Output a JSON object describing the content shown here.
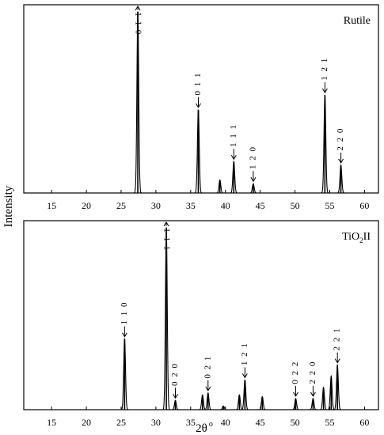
{
  "figure": {
    "ylabel": "Intensity",
    "xlabel_main": "2θ",
    "xlabel_sup": "o"
  },
  "chart_data": [
    {
      "type": "line",
      "title": "Rutile",
      "xlim": [
        11,
        62
      ],
      "ylim": [
        0,
        100
      ],
      "xticks": [
        15,
        20,
        25,
        30,
        35,
        40,
        45,
        50,
        55,
        60
      ],
      "grid": false,
      "peaks": [
        {
          "x": 27.4,
          "y": 98,
          "label": "110",
          "label_position": "top"
        },
        {
          "x": 36.1,
          "y": 45,
          "label": "011"
        },
        {
          "x": 39.2,
          "y": 7,
          "label": ""
        },
        {
          "x": 41.2,
          "y": 17,
          "label": "111"
        },
        {
          "x": 44.0,
          "y": 5,
          "label": "120"
        },
        {
          "x": 54.3,
          "y": 53,
          "label": "121"
        },
        {
          "x": 56.6,
          "y": 15,
          "label": "220"
        }
      ]
    },
    {
      "type": "line",
      "title": "TiO2II",
      "title_main": "TiO",
      "title_sub": "2",
      "title_suffix": "II",
      "xlim": [
        11,
        62
      ],
      "ylim": [
        0,
        100
      ],
      "xticks": [
        15,
        20,
        25,
        30,
        35,
        40,
        45,
        50,
        55,
        60
      ],
      "grid": false,
      "peaks": [
        {
          "x": 25.5,
          "y": 38,
          "label": "110"
        },
        {
          "x": 31.5,
          "y": 98,
          "label": "111",
          "label_position": "top"
        },
        {
          "x": 32.8,
          "y": 5,
          "label": "020"
        },
        {
          "x": 36.7,
          "y": 8,
          "label": ""
        },
        {
          "x": 37.5,
          "y": 9,
          "label": "021"
        },
        {
          "x": 39.7,
          "y": 2,
          "label": ""
        },
        {
          "x": 42.0,
          "y": 8,
          "label": ""
        },
        {
          "x": 42.8,
          "y": 16,
          "label": "121"
        },
        {
          "x": 45.3,
          "y": 7,
          "label": ""
        },
        {
          "x": 50.1,
          "y": 6,
          "label": "022"
        },
        {
          "x": 52.6,
          "y": 6,
          "label": "220"
        },
        {
          "x": 54.1,
          "y": 12,
          "label": ""
        },
        {
          "x": 55.2,
          "y": 18,
          "label": ""
        },
        {
          "x": 56.1,
          "y": 24,
          "label": "221"
        }
      ]
    }
  ]
}
